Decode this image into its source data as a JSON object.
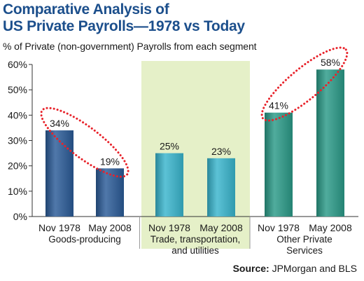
{
  "title_line1": "Comparative Analysis of",
  "title_line2": "US Private Payrolls—1978 vs Today",
  "subtitle": "% of Private (non-government) Payrolls from each segment",
  "source_label": "Source:",
  "source_text": "JPMorgan and BLS",
  "colors": {
    "title": "#1c4f8c",
    "bar_blue": "#2a5a97",
    "bar_cyan": "#38b5cd",
    "bar_green": "#2a9a87",
    "highlight_panel": "#e5f0c8",
    "ellipse": "#e8222a"
  },
  "chart_data": {
    "type": "bar",
    "ylim": [
      0,
      60
    ],
    "yticks": [
      "0%",
      "10%",
      "20%",
      "30%",
      "40%",
      "50%",
      "60%"
    ],
    "groups": [
      {
        "name": "Goods-producing",
        "name_lines": [
          "Goods-producing"
        ],
        "color": "#2a5a97",
        "highlighted": false,
        "circled": true,
        "bars": [
          {
            "label": "Nov 1978",
            "value": 34,
            "value_label": "34%"
          },
          {
            "label": "May 2008",
            "value": 19,
            "value_label": "19%"
          }
        ]
      },
      {
        "name": "Trade, transportation, and utilities",
        "name_lines": [
          "Trade, transportation,",
          "and utilities"
        ],
        "color": "#38b5cd",
        "highlighted": true,
        "circled": false,
        "bars": [
          {
            "label": "Nov 1978",
            "value": 25,
            "value_label": "25%"
          },
          {
            "label": "May 2008",
            "value": 23,
            "value_label": "23%"
          }
        ]
      },
      {
        "name": "Other Private Services",
        "name_lines": [
          "Other Private",
          "Services"
        ],
        "color": "#2a9a87",
        "highlighted": false,
        "circled": true,
        "bars": [
          {
            "label": "Nov 1978",
            "value": 41,
            "value_label": "41%"
          },
          {
            "label": "May 2008",
            "value": 58,
            "value_label": "58%"
          }
        ]
      }
    ]
  }
}
